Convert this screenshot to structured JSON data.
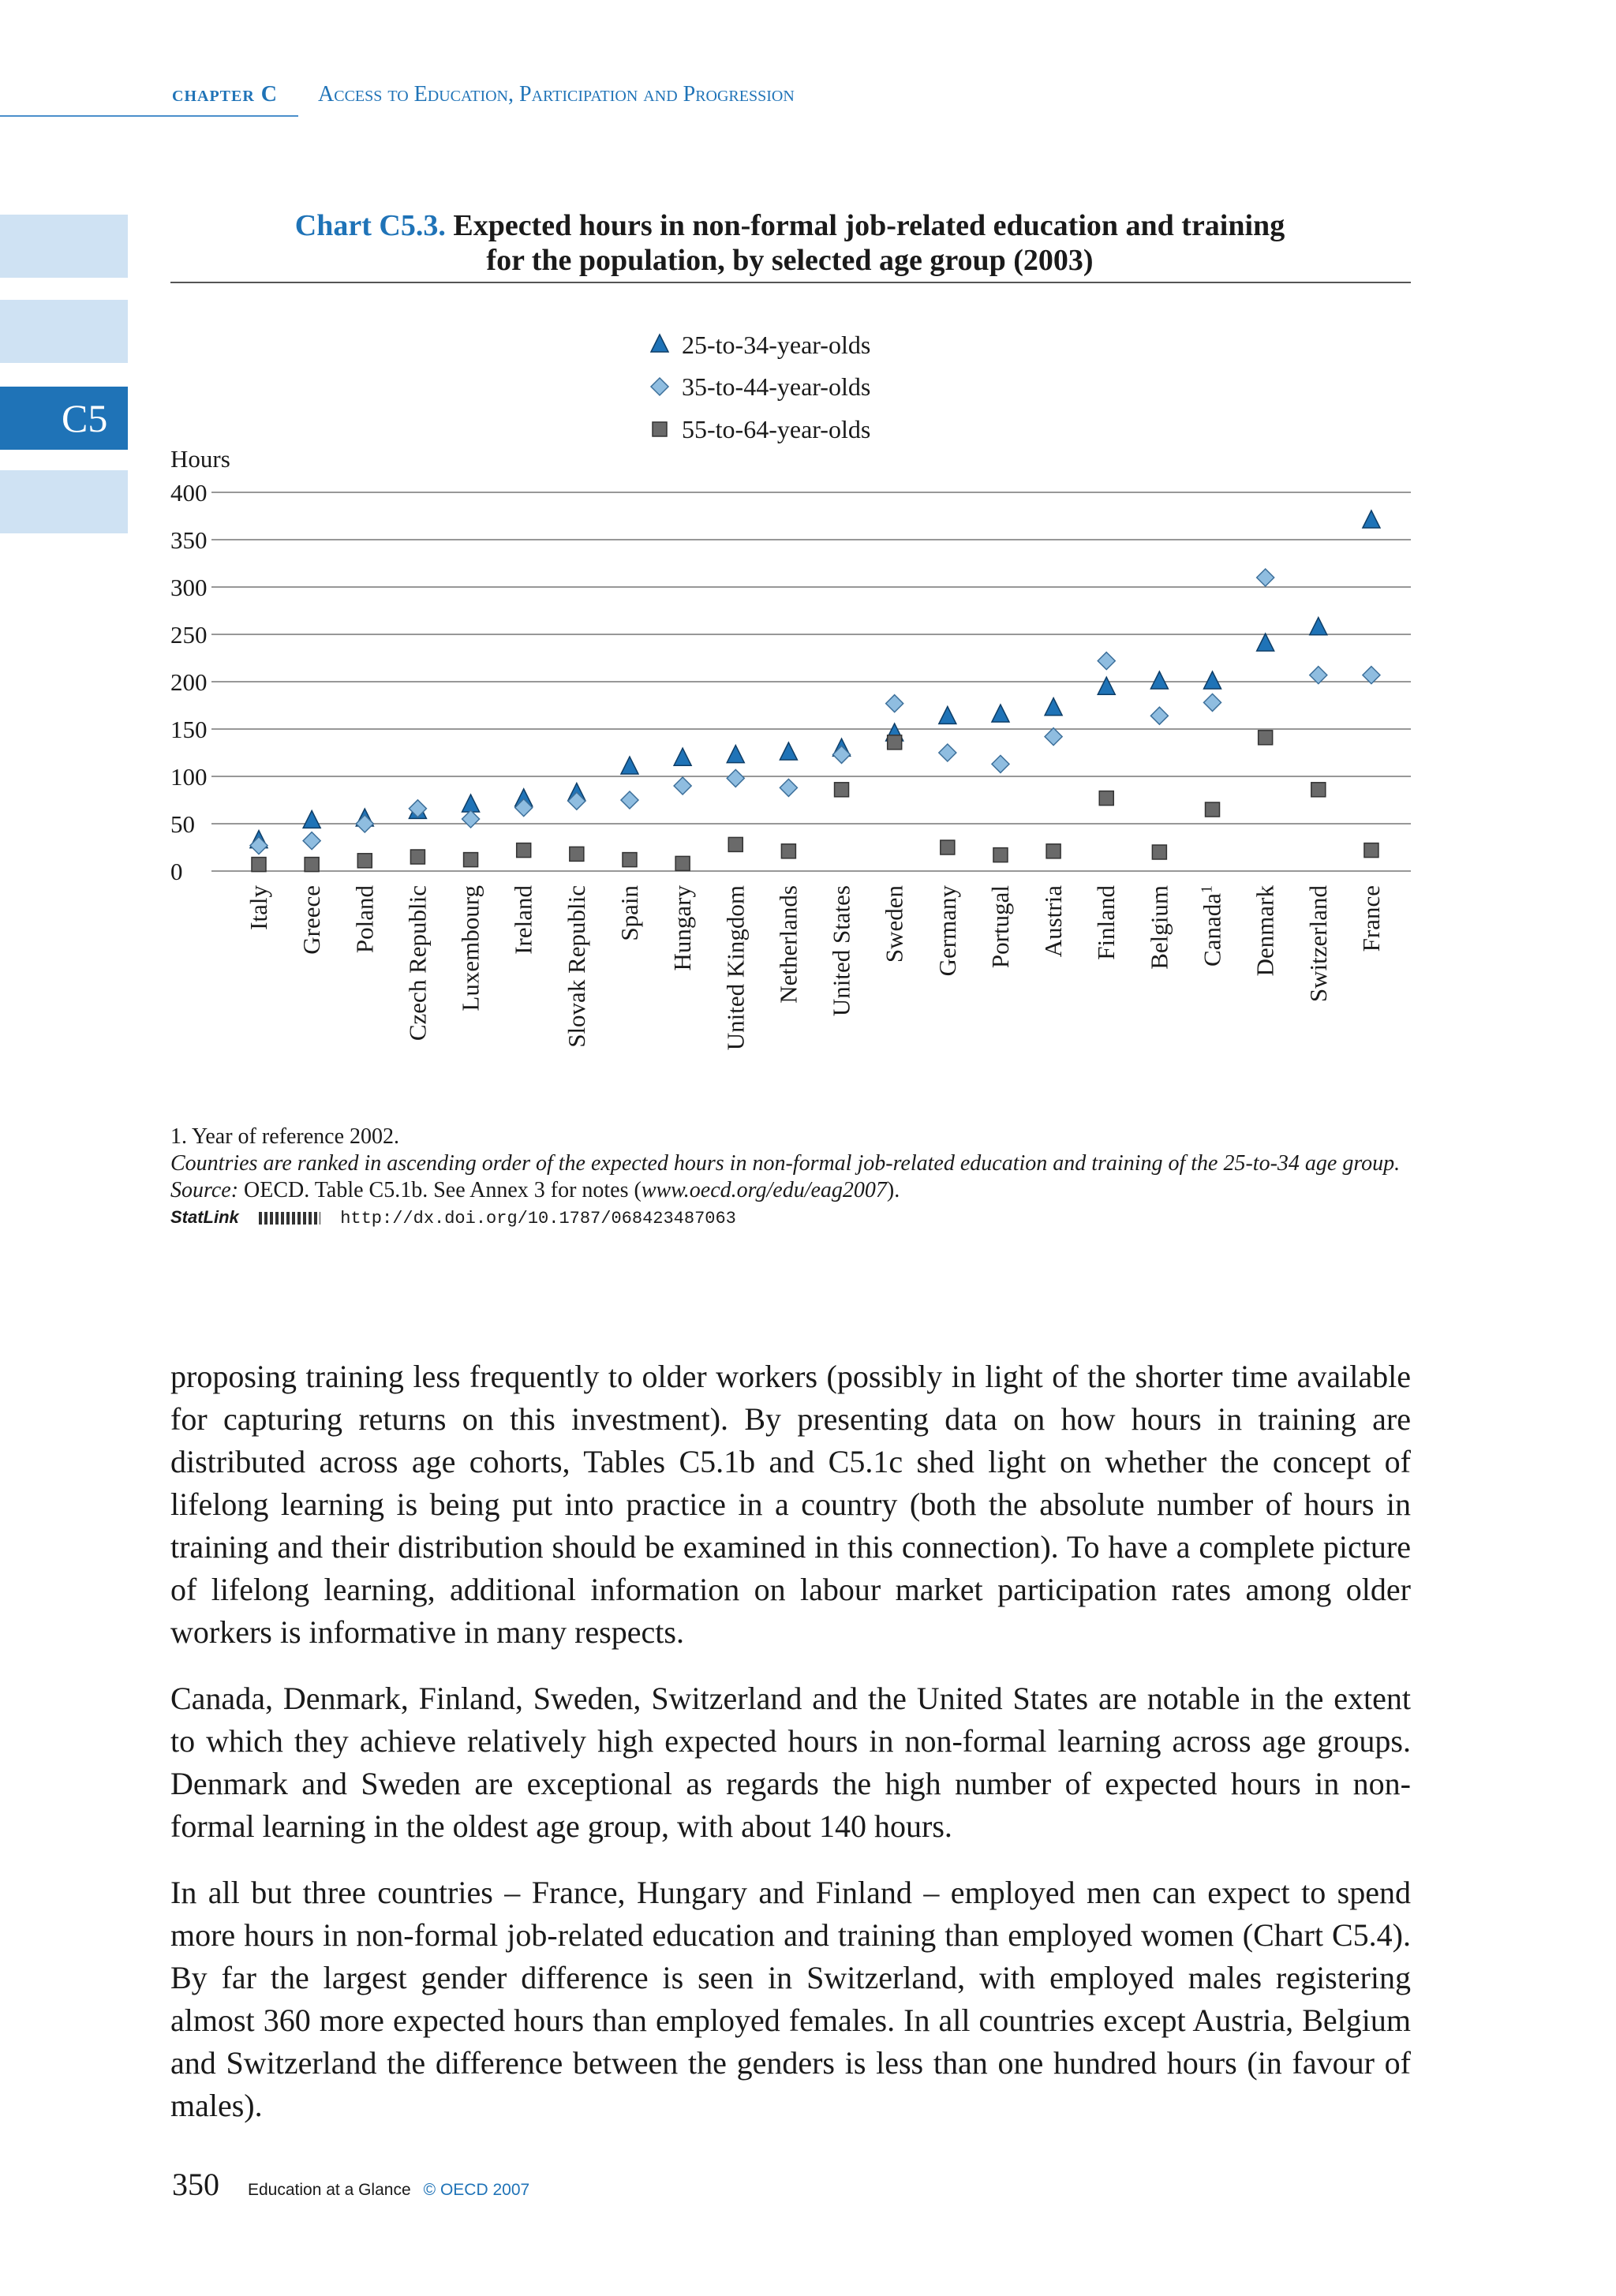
{
  "header": {
    "chapter": "chapter C",
    "section": "Access to Education, Participation and Progression"
  },
  "side_tab": {
    "active_label": "C5"
  },
  "chart_title": {
    "number": "Chart C5.3.",
    "line1": "Expected hours in non-formal job-related education and training",
    "line2": "for the population, by selected age group (2003)"
  },
  "chart_data": {
    "type": "scatter",
    "title": "Expected hours in non-formal job-related education and training for the population, by selected age group (2003)",
    "ylabel": "Hours",
    "ylim": [
      0,
      400
    ],
    "yticks": [
      0,
      50,
      100,
      150,
      200,
      250,
      300,
      350,
      400
    ],
    "grid": true,
    "legend_position": "top-center",
    "categories": [
      "Italy",
      "Greece",
      "Poland",
      "Czech Republic",
      "Luxembourg",
      "Ireland",
      "Slovak Republic",
      "Spain",
      "Hungary",
      "United Kingdom",
      "Netherlands",
      "United States",
      "Sweden",
      "Germany",
      "Portugal",
      "Austria",
      "Finland",
      "Belgium",
      "Canada",
      "Denmark",
      "Switzerland",
      "France"
    ],
    "category_superscripts": {
      "Canada": "1"
    },
    "series": [
      {
        "name": "25-to-34-year-olds",
        "marker": "triangle",
        "color": "#1f73b7",
        "values": [
          32,
          53,
          55,
          63,
          70,
          76,
          82,
          110,
          119,
          122,
          125,
          129,
          145,
          163,
          165,
          172,
          194,
          200,
          200,
          240,
          257,
          370
        ]
      },
      {
        "name": "35-to-44-year-olds",
        "marker": "diamond",
        "color": "#8fbde0",
        "values": [
          27,
          32,
          50,
          66,
          55,
          67,
          74,
          75,
          90,
          98,
          88,
          123,
          177,
          125,
          113,
          142,
          222,
          164,
          178,
          310,
          207,
          207
        ]
      },
      {
        "name": "55-to-64-year-olds",
        "marker": "square",
        "color": "#6a6a6a",
        "values": [
          7,
          7,
          11,
          15,
          12,
          22,
          18,
          12,
          8,
          28,
          21,
          86,
          136,
          25,
          17,
          21,
          77,
          20,
          65,
          141,
          86,
          22
        ]
      }
    ]
  },
  "notes": {
    "footnote": "1. Year of reference 2002.",
    "ranking": "Countries are ranked in ascending order of the expected hours in non-formal job-related education and training of the 25-to-34 age group.",
    "source_label": "Source:",
    "source_text": "OECD. Table C5.1b. See Annex 3 for notes (",
    "source_url": "www.oecd.org/edu/eag2007",
    "source_end": ").",
    "statlink_label": "StatLink",
    "statlink_url": "http://dx.doi.org/10.1787/068423487063"
  },
  "body": {
    "p1": "proposing training less frequently to older workers (possibly in light of the shorter time available for capturing returns on this investment). By presenting data on how hours in training are distributed across age cohorts, Tables C5.1b and C5.1c shed light on whether the concept of lifelong learning is being put into practice in a country (both the absolute number of hours in training and their distribution should be examined in this connection). To have a complete picture of lifelong learning, additional information on labour market participation rates among older workers is informative in many respects.",
    "p2": "Canada, Denmark, Finland, Sweden, Switzerland and the United States are notable in the extent to which they achieve relatively high expected hours in non-formal learning across age groups. Denmark and Sweden are exceptional as regards the high number of expected hours in non-formal learning in the oldest age group, with about 140 hours.",
    "p3": "In all but three countries – France, Hungary and Finland – employed men can expect to spend more hours in non-formal job-related education and training than employed women (Chart C5.4). By far the largest gender difference is seen in Switzerland, with employed males registering almost 360 more expected hours than employed females. In all countries except Austria, Belgium and Switzerland the difference between the genders is less than one hundred hours (in favour of males)."
  },
  "footer": {
    "page_number": "350",
    "publication": "Education at a Glance",
    "copyright": "© OECD 2007"
  }
}
